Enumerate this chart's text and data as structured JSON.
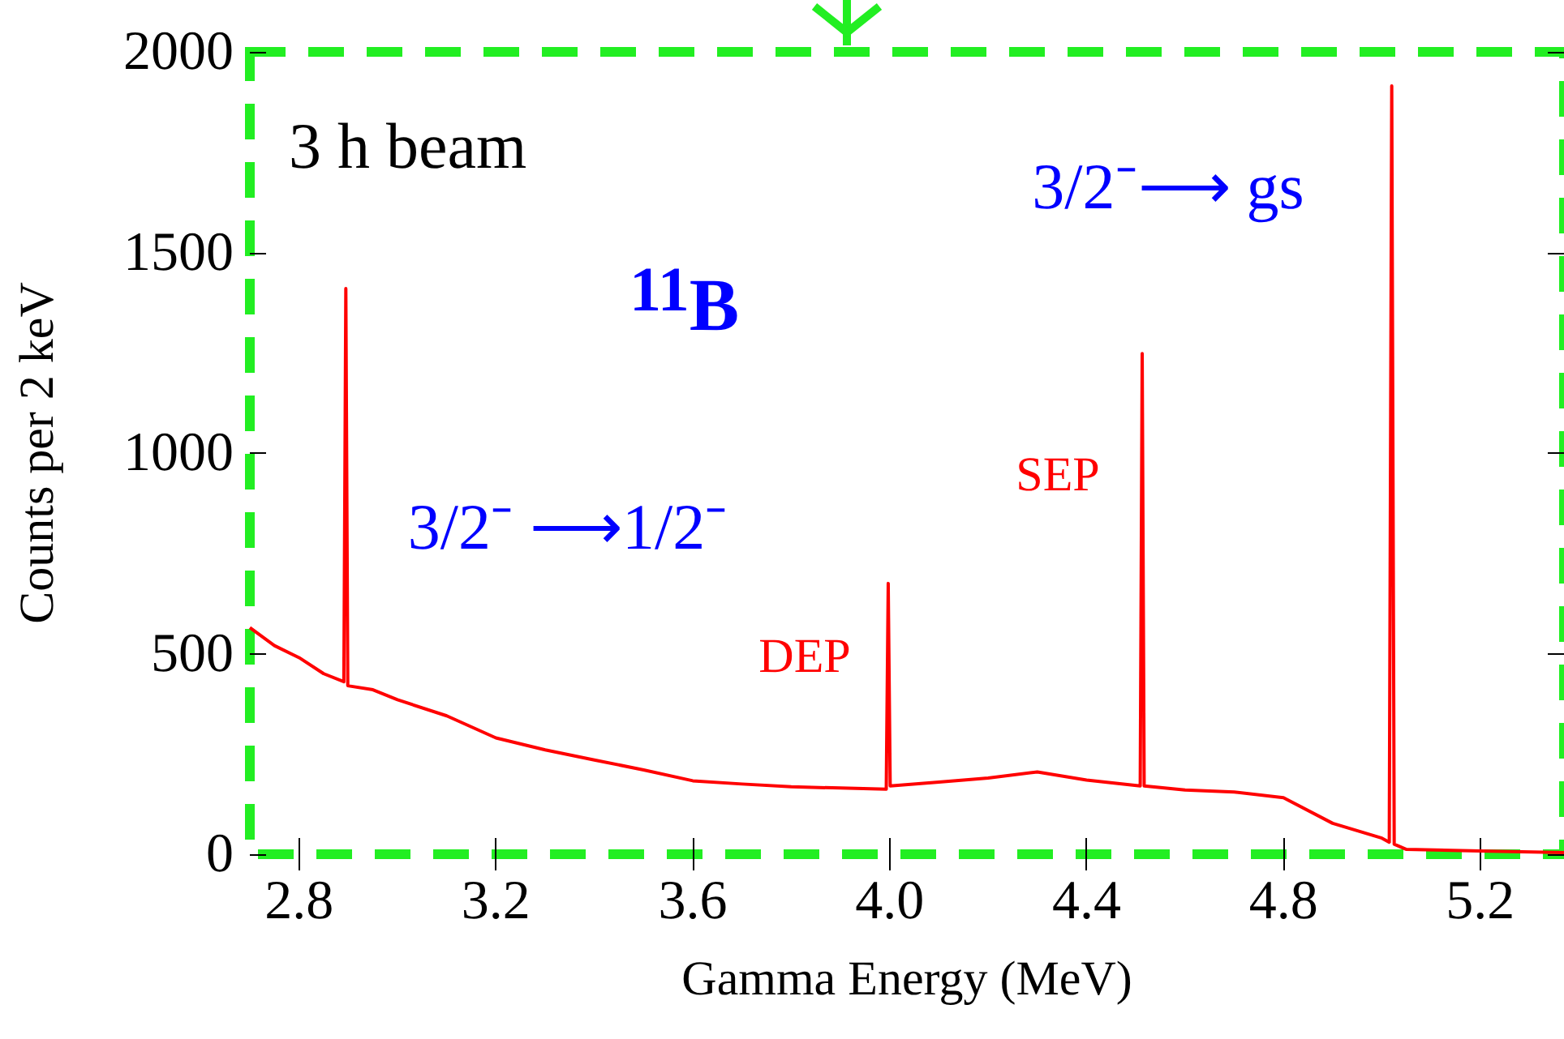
{
  "chart_data": {
    "type": "line",
    "xlabel": "Gamma Energy (MeV)",
    "ylabel": "Counts per 2 keV",
    "x": [
      2.7,
      2.75,
      2.8,
      2.85,
      2.891,
      2.895,
      2.899,
      2.95,
      3.0,
      3.1,
      3.2,
      3.3,
      3.4,
      3.5,
      3.6,
      3.7,
      3.8,
      3.9,
      3.993,
      3.997,
      4.001,
      4.1,
      4.2,
      4.3,
      4.4,
      4.509,
      4.513,
      4.517,
      4.6,
      4.7,
      4.8,
      4.9,
      5.0,
      5.015,
      5.02,
      5.025,
      5.05,
      5.2,
      5.37
    ],
    "series": [
      {
        "color": "#ff0000",
        "values": [
          565,
          520,
          490,
          450,
          430,
          1410,
          420,
          410,
          385,
          345,
          290,
          260,
          235,
          210,
          183,
          175,
          168,
          165,
          162,
          675,
          170,
          180,
          190,
          205,
          185,
          170,
          1248,
          170,
          160,
          155,
          141,
          77,
          40,
          30,
          1915,
          25,
          12,
          8,
          4
        ]
      }
    ],
    "xlim": [
      2.7,
      5.37
    ],
    "xticks": [
      2.8,
      3.2,
      3.6,
      {
        "value": 4,
        "label": "4.0"
      },
      4.4,
      4.8,
      5.2
    ],
    "ylim": [
      0,
      2000
    ],
    "yticks": [
      0,
      500,
      1000,
      1500,
      2000
    ],
    "grid": false,
    "marker": "none",
    "line_style": "solid",
    "annotations": [
      "3 h beam",
      "$^{11}$B",
      "3/2⁻ ⟶1/2⁻",
      "3/2⁻⟶ gs",
      "DEP",
      "SEP"
    ]
  }
}
